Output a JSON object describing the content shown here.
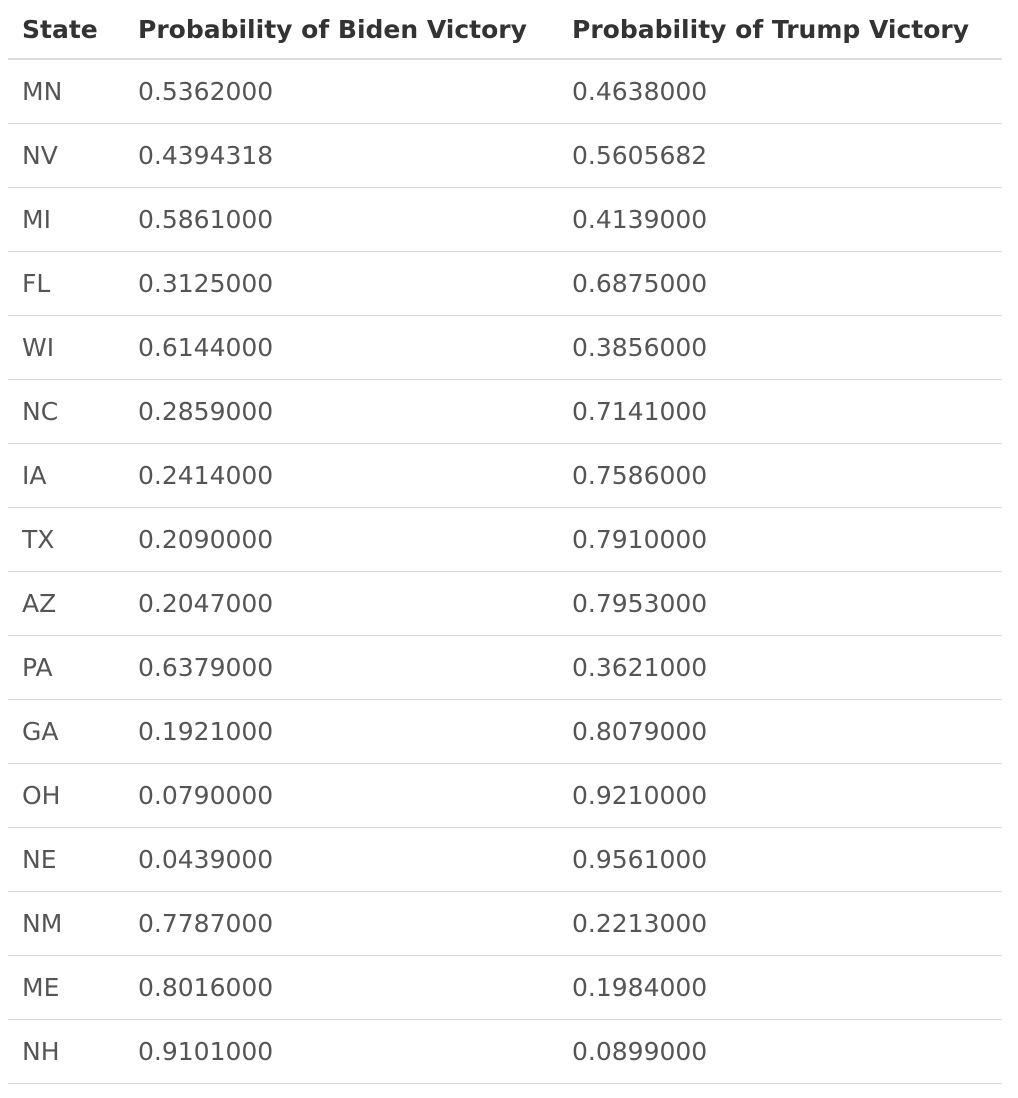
{
  "table": {
    "headers": [
      "State",
      "Probability of Biden Victory",
      "Probability of Trump Victory"
    ],
    "rows": [
      [
        "MN",
        "0.5362000",
        "0.4638000"
      ],
      [
        "NV",
        "0.4394318",
        "0.5605682"
      ],
      [
        "MI",
        "0.5861000",
        "0.4139000"
      ],
      [
        "FL",
        "0.3125000",
        "0.6875000"
      ],
      [
        "WI",
        "0.6144000",
        "0.3856000"
      ],
      [
        "NC",
        "0.2859000",
        "0.7141000"
      ],
      [
        "IA",
        "0.2414000",
        "0.7586000"
      ],
      [
        "TX",
        "0.2090000",
        "0.7910000"
      ],
      [
        "AZ",
        "0.2047000",
        "0.7953000"
      ],
      [
        "PA",
        "0.6379000",
        "0.3621000"
      ],
      [
        "GA",
        "0.1921000",
        "0.8079000"
      ],
      [
        "OH",
        "0.0790000",
        "0.9210000"
      ],
      [
        "NE",
        "0.0439000",
        "0.9561000"
      ],
      [
        "NM",
        "0.7787000",
        "0.2213000"
      ],
      [
        "ME",
        "0.8016000",
        "0.1984000"
      ],
      [
        "NH",
        "0.9101000",
        "0.0899000"
      ]
    ]
  }
}
